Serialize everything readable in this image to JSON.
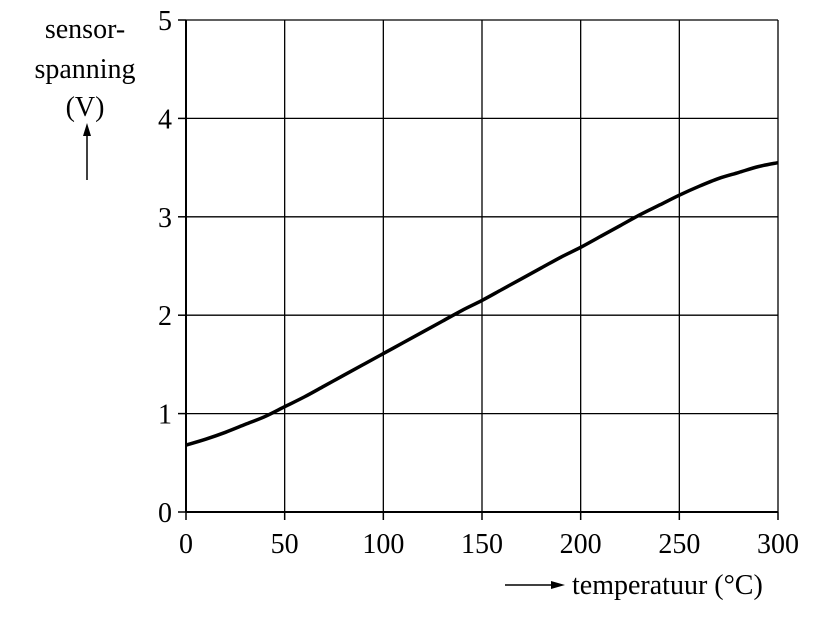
{
  "chart_data": {
    "type": "line",
    "x_ticks": [
      "0",
      "50",
      "100",
      "150",
      "200",
      "250",
      "300"
    ],
    "y_ticks": [
      "0",
      "1",
      "2",
      "3",
      "4",
      "5"
    ],
    "xlim": [
      0,
      300
    ],
    "ylim": [
      0,
      5
    ],
    "grid": true,
    "ylabel_lines": [
      "sensor-",
      "spanning",
      "(V)"
    ],
    "xlabel": "temperatuur (°C)",
    "series": [
      {
        "x": [
          0,
          10,
          20,
          30,
          40,
          50,
          60,
          70,
          80,
          90,
          100,
          110,
          120,
          130,
          140,
          150,
          160,
          170,
          180,
          190,
          200,
          210,
          220,
          230,
          240,
          250,
          260,
          270,
          280,
          290,
          300
        ],
        "y": [
          0.68,
          0.74,
          0.81,
          0.89,
          0.97,
          1.07,
          1.17,
          1.28,
          1.39,
          1.5,
          1.61,
          1.72,
          1.83,
          1.94,
          2.05,
          2.15,
          2.26,
          2.37,
          2.48,
          2.59,
          2.69,
          2.8,
          2.91,
          3.02,
          3.12,
          3.22,
          3.31,
          3.39,
          3.45,
          3.51,
          3.55
        ]
      }
    ]
  }
}
